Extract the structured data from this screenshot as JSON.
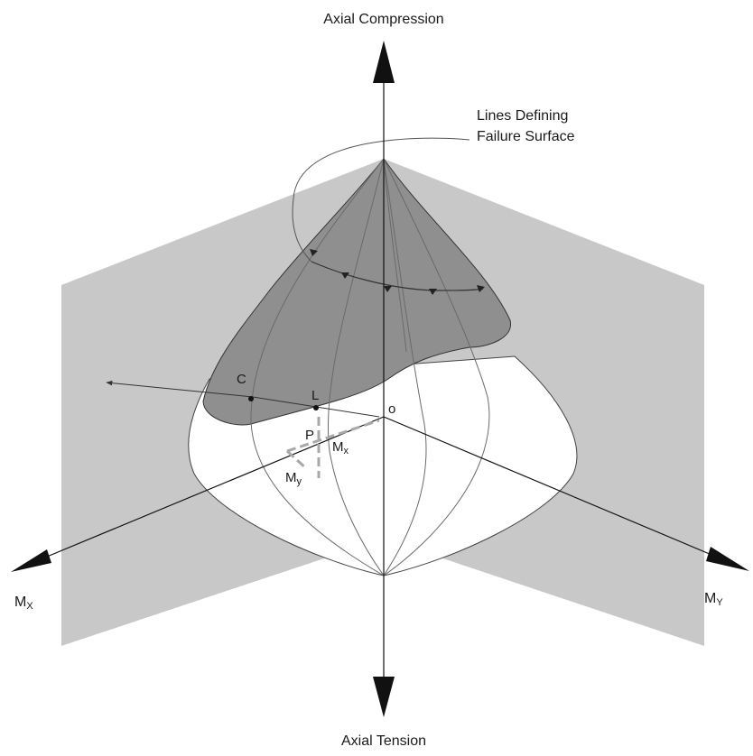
{
  "labels": {
    "axial_compression": "Axial Compression",
    "axial_tension": "Axial Tension",
    "failure_lines_1": "Lines Defining",
    "failure_lines_2": "Failure Surface",
    "mx_main": "M",
    "mx_main_sub": "X",
    "my_main": "M",
    "my_main_sub": "Y",
    "point_c": "C",
    "point_l": "L",
    "point_o": "o",
    "point_p": "P",
    "mx_small": "M",
    "mx_small_sub": "x",
    "my_small": "M",
    "my_small_sub": "y"
  },
  "colors": {
    "plane_gray": "#c8c8c8",
    "surface_dark": "#8f8f8f",
    "surface_white": "#ffffff",
    "axis": "#111111",
    "dashed_gray": "#a8a8a8",
    "meridian": "#6a6a6a"
  }
}
